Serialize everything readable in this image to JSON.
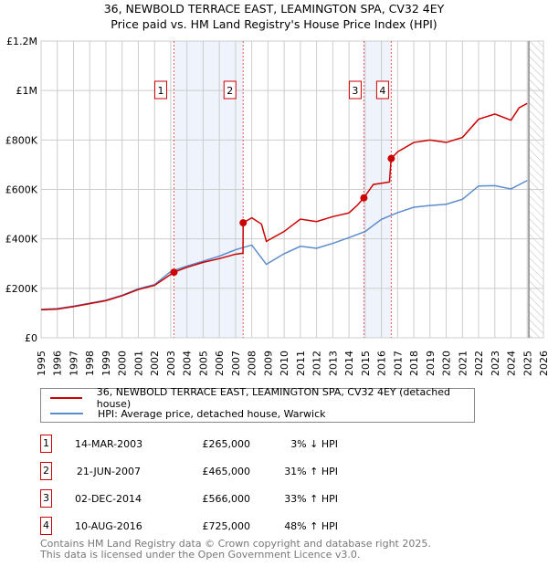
{
  "title": "36, NEWBOLD TERRACE EAST, LEAMINGTON SPA, CV32 4EY",
  "subtitle": "Price paid vs. HM Land Registry's House Price Index (HPI)",
  "chart_data": {
    "type": "line",
    "xlim": [
      1995,
      2026
    ],
    "ylim": [
      0,
      1200000
    ],
    "xticks": [
      "1995",
      "1996",
      "1997",
      "1998",
      "1999",
      "2000",
      "2001",
      "2002",
      "2003",
      "2004",
      "2005",
      "2006",
      "2007",
      "2008",
      "2009",
      "2010",
      "2011",
      "2012",
      "2013",
      "2014",
      "2015",
      "2016",
      "2017",
      "2018",
      "2019",
      "2020",
      "2021",
      "2022",
      "2023",
      "2024",
      "2025",
      "2026"
    ],
    "yticks": [
      {
        "v": 0,
        "label": "£0"
      },
      {
        "v": 200000,
        "label": "£200K"
      },
      {
        "v": 400000,
        "label": "£400K"
      },
      {
        "v": 600000,
        "label": "£600K"
      },
      {
        "v": 800000,
        "label": "£800K"
      },
      {
        "v": 1000000,
        "label": "£1M"
      },
      {
        "v": 1200000,
        "label": "£1.2M"
      }
    ],
    "series": [
      {
        "name": "36, NEWBOLD TERRACE EAST, LEAMINGTON SPA, CV32 4EY (detached house)",
        "color": "#cc0000",
        "x": [
          1995,
          1996,
          1997,
          1998,
          1999,
          2000,
          2001,
          2002,
          2003.2,
          2004,
          2005,
          2006,
          2007,
          2007.46,
          2007.47,
          2008,
          2008.6,
          2008.9,
          2010,
          2011,
          2012,
          2013,
          2014,
          2014.5,
          2014.92,
          2015.5,
          2016.5,
          2016.6,
          2017,
          2018,
          2019,
          2020,
          2021,
          2022,
          2023,
          2024,
          2024.5,
          2025
        ],
        "y": [
          113000,
          116000,
          126000,
          138000,
          150000,
          170000,
          195000,
          212000,
          265000,
          285000,
          305000,
          320000,
          338000,
          342000,
          465000,
          485000,
          460000,
          390000,
          430000,
          480000,
          470000,
          490000,
          505000,
          535000,
          566000,
          620000,
          630000,
          725000,
          752000,
          790000,
          800000,
          790000,
          810000,
          884000,
          905000,
          880000,
          930000,
          948000
        ]
      },
      {
        "name": "HPI: Average price, detached house, Warwick",
        "color": "#5b8ccf",
        "x": [
          1995,
          1996,
          1997,
          1998,
          1999,
          2000,
          2001,
          2002,
          2003,
          2004,
          2005,
          2006,
          2007,
          2008,
          2008.9,
          2010,
          2011,
          2012,
          2013,
          2014,
          2015,
          2016,
          2017,
          2018,
          2019,
          2020,
          2021,
          2022,
          2023,
          2024,
          2025
        ],
        "y": [
          115000,
          118000,
          128000,
          140000,
          152000,
          172000,
          198000,
          215000,
          268000,
          290000,
          310000,
          330000,
          356000,
          375000,
          297000,
          340000,
          370000,
          362000,
          382000,
          405000,
          430000,
          479000,
          506000,
          528000,
          535000,
          540000,
          560000,
          614000,
          615000,
          602000,
          636000
        ]
      }
    ],
    "sales": [
      {
        "n": "1",
        "date": "14-MAR-2003",
        "x": 2003.2,
        "price": "£265,000",
        "v": 265000,
        "hpi": "3% ↓ HPI"
      },
      {
        "n": "2",
        "date": "21-JUN-2007",
        "x": 2007.47,
        "price": "£465,000",
        "v": 465000,
        "hpi": "31% ↑ HPI"
      },
      {
        "n": "3",
        "date": "02-DEC-2014",
        "x": 2014.92,
        "price": "£566,000",
        "v": 566000,
        "hpi": "33% ↑ HPI"
      },
      {
        "n": "4",
        "date": "10-AUG-2016",
        "x": 2016.61,
        "price": "£725,000",
        "v": 725000,
        "hpi": "48% ↑ HPI"
      }
    ],
    "shaded": [
      [
        2003.2,
        2007.47
      ],
      [
        2014.92,
        2016.61
      ]
    ],
    "forecast_from": 2025.1
  },
  "footer": [
    "Contains HM Land Registry data © Crown copyright and database right 2025.",
    "This data is licensed under the Open Government Licence v3.0."
  ]
}
